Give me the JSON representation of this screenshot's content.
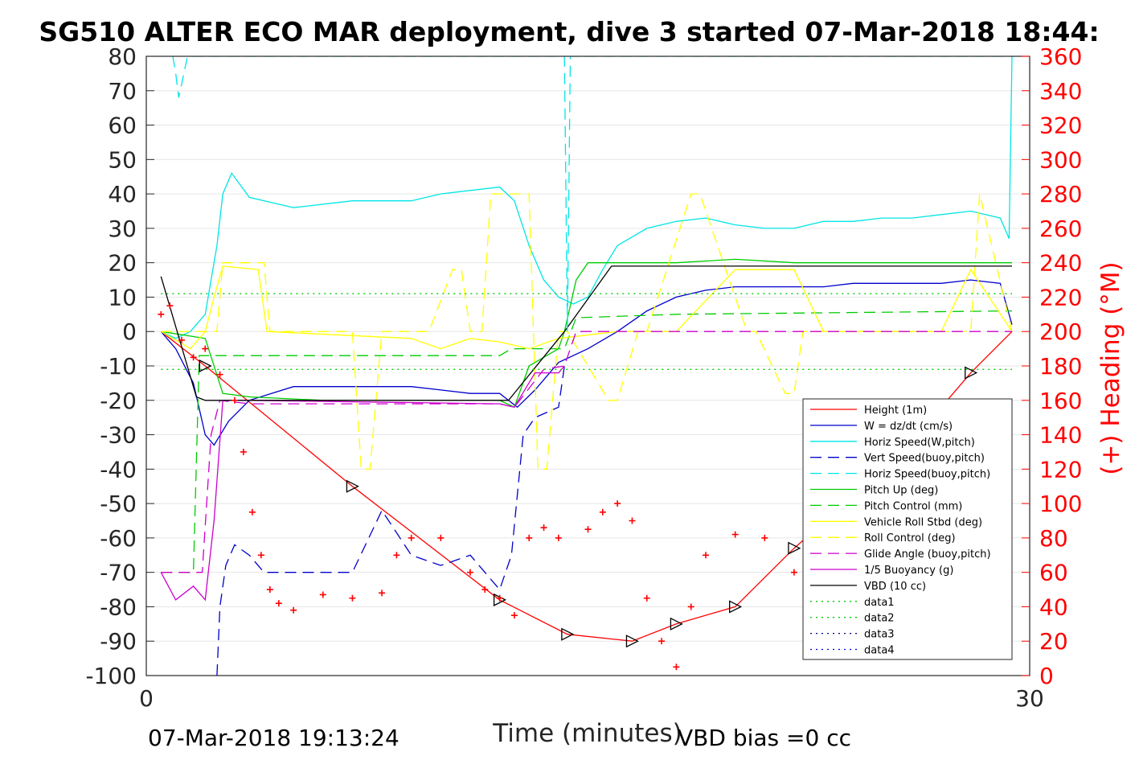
{
  "title": "SG510 ALTER ECO MAR deployment, dive 3 started 07-Mar-2018 18:44:",
  "footer": {
    "timestamp": "07-Mar-2018 19:13:24",
    "vbd_bias": "VBD bias =0 cc"
  },
  "chart_data": {
    "type": "line",
    "xlabel": "Time (minutes)",
    "ylabel_left": "",
    "ylabel_right": "(+) Heading (°M)",
    "xlim": [
      0,
      30
    ],
    "ylim_left": [
      -100,
      80
    ],
    "ylim_right": [
      0,
      360
    ],
    "x_ticks": [
      "0",
      "30"
    ],
    "y_ticks_left": [
      "80",
      "70",
      "60",
      "50",
      "40",
      "30",
      "20",
      "10",
      "0",
      "-10",
      "-20",
      "-30",
      "-40",
      "-50",
      "-60",
      "-70",
      "-80",
      "-90",
      "-100"
    ],
    "y_ticks_right": [
      "360",
      "340",
      "320",
      "300",
      "280",
      "260",
      "240",
      "220",
      "200",
      "180",
      "160",
      "140",
      "120",
      "100",
      "80",
      "60",
      "40",
      "20",
      "0"
    ],
    "grid": "horizontal",
    "legend_position": "lower-right",
    "legend": [
      {
        "name": "Height (1m)",
        "color": "#ff0000",
        "dash": "solid"
      },
      {
        "name": "W = dz/dt (cm/s)",
        "color": "#0000cc",
        "dash": "solid"
      },
      {
        "name": "Horiz Speed(W,pitch)",
        "color": "#00e5e5",
        "dash": "solid"
      },
      {
        "name": "Vert Speed(buoy,pitch)",
        "color": "#0000cc",
        "dash": "dashed"
      },
      {
        "name": "Horiz Speed(buoy,pitch)",
        "color": "#00e5e5",
        "dash": "dashed"
      },
      {
        "name": "Pitch Up (deg)",
        "color": "#00cc00",
        "dash": "solid"
      },
      {
        "name": "Pitch Control (mm)",
        "color": "#00cc00",
        "dash": "dashed"
      },
      {
        "name": "Vehicle Roll Stbd (deg)",
        "color": "#ffff00",
        "dash": "solid"
      },
      {
        "name": "Roll Control (deg)",
        "color": "#ffff00",
        "dash": "dashed"
      },
      {
        "name": "Glide Angle (buoy,pitch)",
        "color": "#cc00cc",
        "dash": "dashed"
      },
      {
        "name": "1/5 Buoyancy (g)",
        "color": "#cc00cc",
        "dash": "solid"
      },
      {
        "name": "VBD (10 cc)",
        "color": "#000000",
        "dash": "solid"
      },
      {
        "name": "data1",
        "color": "#00cc00",
        "dash": "dotted"
      },
      {
        "name": "data2",
        "color": "#00cc00",
        "dash": "dotted"
      },
      {
        "name": "data3",
        "color": "#000080",
        "dash": "dotted"
      },
      {
        "name": "data4",
        "color": "#0000cc",
        "dash": "dotted"
      }
    ],
    "series": [
      {
        "name": "Height (1m)",
        "x": [
          0.5,
          2.0,
          7.0,
          12.0,
          14.3,
          16.5,
          18.0,
          20.0,
          22.0,
          24.0,
          26.5,
          28.0,
          29.4
        ],
        "y": [
          0,
          -10,
          -45,
          -78,
          -88,
          -90,
          -85,
          -80,
          -63,
          -48,
          -27,
          -12,
          0
        ]
      },
      {
        "name": "W = dz/dt (cm/s)",
        "x": [
          0.5,
          1.0,
          1.6,
          2.0,
          2.3,
          2.8,
          3.5,
          5,
          7,
          9,
          10,
          11,
          12,
          12.6,
          13.2,
          14,
          15,
          16,
          17,
          18,
          19,
          20,
          21,
          22,
          23,
          24,
          25,
          26,
          27,
          28,
          29,
          29.4
        ],
        "y": [
          0,
          -5,
          -15,
          -30,
          -33,
          -26,
          -20,
          -16,
          -16,
          -16,
          -17,
          -18,
          -18,
          -22,
          -17,
          -9,
          -5,
          0,
          6,
          10,
          12,
          13,
          13,
          13,
          13,
          14,
          14,
          14,
          14,
          15,
          14,
          2
        ]
      },
      {
        "name": "Horiz Speed(W,pitch)",
        "x": [
          0.5,
          1.0,
          1.5,
          2.0,
          2.4,
          2.6,
          2.9,
          3.5,
          5,
          7,
          9,
          10,
          11,
          12,
          12.5,
          13,
          13.5,
          14,
          14.5,
          15,
          15.5,
          16,
          17,
          18,
          19,
          20,
          21,
          22,
          23,
          24,
          25,
          26,
          27,
          28,
          29,
          29.3,
          29.4
        ],
        "y": [
          0,
          -2,
          0,
          5,
          25,
          40,
          46,
          39,
          36,
          38,
          38,
          40,
          41,
          42,
          38,
          25,
          15,
          10,
          8,
          10,
          18,
          25,
          30,
          32,
          33,
          31,
          30,
          30,
          32,
          32,
          33,
          33,
          34,
          35,
          33,
          27,
          80
        ]
      },
      {
        "name": "Pitch Up (deg)",
        "x": [
          0.5,
          2.0,
          2.3,
          2.6,
          3.5,
          6,
          9,
          12,
          12.5,
          13,
          14,
          14.2,
          14.6,
          15,
          16,
          18,
          20,
          22,
          24,
          26,
          29.4
        ],
        "y": [
          0,
          -2,
          -10,
          -18,
          -19,
          -20,
          -20,
          -20,
          -22,
          -10,
          -5,
          0,
          15,
          20,
          20,
          20,
          21,
          20,
          20,
          20,
          20
        ]
      },
      {
        "name": "Pitch Control (mm)",
        "x": [
          0.5,
          1.6,
          1.8,
          12.0,
          12.4,
          14.2,
          14.6,
          18,
          29.4
        ],
        "y": [
          -70,
          -70,
          -7,
          -7,
          -5,
          -5,
          4,
          5,
          6
        ]
      },
      {
        "name": "Vehicle Roll Stbd (deg)",
        "x": [
          0.5,
          1.5,
          2.0,
          2.3,
          2.6,
          3.8,
          4.1,
          9,
          10,
          11,
          12,
          13,
          14,
          16,
          17,
          18,
          20,
          22,
          23,
          24,
          27,
          28,
          29.4
        ],
        "y": [
          0,
          -5,
          0,
          10,
          19,
          18,
          0,
          -2,
          -5,
          -2,
          -3,
          -5,
          -2,
          0,
          0,
          0,
          18,
          18,
          0,
          0,
          0,
          18,
          0
        ]
      },
      {
        "name": "Roll Control (deg)",
        "x": [
          0.5,
          2.4,
          2.6,
          4.0,
          4.2,
          7.0,
          7.3,
          7.6,
          8.0,
          8.4,
          9.3,
          9.6,
          10.4,
          10.7,
          11.0,
          11.4,
          11.7,
          13.0,
          13.3,
          13.6,
          14.0,
          14.3,
          15.7,
          16.0,
          16.7,
          17.0,
          18.5,
          18.8,
          20.4,
          20.7,
          21.7,
          22.0,
          22.3,
          22.8,
          23.2,
          28.0,
          28.3,
          29.4
        ],
        "y": [
          0,
          0,
          20,
          20,
          0,
          0,
          -40,
          -40,
          0,
          0,
          0,
          0,
          18,
          18,
          0,
          0,
          40,
          40,
          -40,
          -40,
          0,
          0,
          -20,
          -20,
          0,
          0,
          40,
          40,
          0,
          0,
          -18,
          -18,
          0,
          0,
          0,
          0,
          40,
          0
        ]
      },
      {
        "name": "Glide Angle (buoy,pitch)",
        "x": [
          0.5,
          1.9,
          2.2,
          2.5,
          3.5,
          12,
          12.5,
          13.5,
          14.2,
          14.6,
          29.4
        ],
        "y": [
          -70,
          -70,
          -30,
          -20,
          -21,
          -21,
          -22,
          -11,
          -10,
          0,
          0
        ]
      },
      {
        "name": "1/5 Buoyancy (g)",
        "x": [
          0.5,
          1.0,
          1.6,
          2.0,
          2.3,
          2.6,
          3.5,
          12,
          12.5,
          13.2,
          14.0,
          14.2
        ],
        "y": [
          -70,
          -78,
          -74,
          -78,
          -55,
          -20,
          -20,
          -21,
          -22,
          -12,
          -12,
          -10
        ]
      },
      {
        "name": "VBD (10 cc)",
        "x": [
          0.5,
          1.7,
          2.0,
          12.3,
          14.2,
          15.8,
          18.0,
          29.4
        ],
        "y": [
          16,
          -19,
          -20,
          -20,
          0,
          19,
          19,
          19
        ]
      },
      {
        "name": "Vert Speed(buoy,pitch)",
        "x": [
          2.4,
          2.5,
          2.7,
          3.0,
          3.5,
          4.0,
          7.0,
          8.0,
          9.0,
          10.0,
          11.0,
          12.0,
          12.4,
          12.8,
          13.2,
          14.0,
          14.2
        ],
        "y": [
          -100,
          -80,
          -68,
          -62,
          -65,
          -70,
          -70,
          -52,
          -65,
          -68,
          -65,
          -75,
          -65,
          -30,
          -25,
          -22,
          -10
        ]
      },
      {
        "name": "Horiz Speed(buoy,pitch)",
        "x": [
          0.9,
          1.0,
          1.1,
          1.2,
          1.4,
          14.2,
          14.3,
          14.4,
          29.4,
          29.5
        ],
        "y": [
          80,
          75,
          68,
          72,
          80,
          80,
          0,
          80,
          80,
          80
        ]
      },
      {
        "name": "data1",
        "x": [
          0.5,
          29.4
        ],
        "y": [
          11,
          11
        ]
      },
      {
        "name": "data2",
        "x": [
          0.5,
          29.4
        ],
        "y": [
          -11,
          -11
        ]
      }
    ],
    "heading_series": {
      "name": "(+) Heading (°M)",
      "x": [
        0.5,
        0.8,
        1.2,
        1.6,
        2.0,
        2.5,
        3.0,
        3.3,
        3.6,
        3.9,
        4.2,
        4.5,
        5.0,
        6,
        7,
        8,
        8.5,
        9,
        10,
        11,
        11.5,
        12,
        12.5,
        13,
        13.5,
        14,
        15,
        15.5,
        16,
        16.5,
        17,
        17.5,
        18,
        18.5,
        19,
        20,
        21,
        22,
        23,
        24,
        25,
        26,
        27,
        28,
        28.5,
        29
      ],
      "y": [
        210,
        215,
        195,
        185,
        190,
        175,
        160,
        130,
        95,
        70,
        50,
        42,
        38,
        47,
        45,
        48,
        70,
        80,
        80,
        60,
        50,
        45,
        35,
        80,
        86,
        80,
        85,
        95,
        100,
        90,
        45,
        20,
        5,
        40,
        70,
        82,
        80,
        60,
        40,
        70,
        78,
        70,
        50,
        25,
        35,
        60
      ]
    }
  }
}
